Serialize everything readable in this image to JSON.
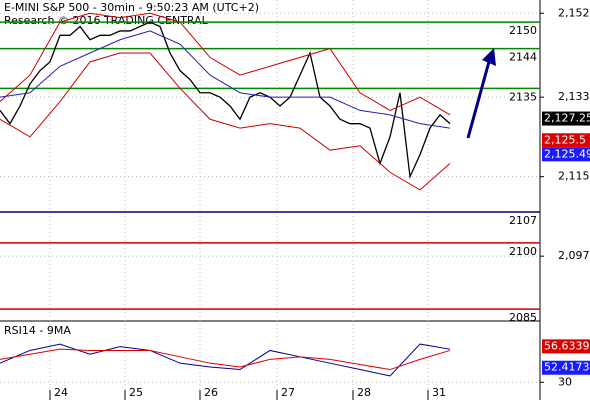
{
  "chart_data": [
    {
      "type": "line",
      "title": "E-MINI S&P 500 - 30min - 9:50:23 AM (UTC+2)",
      "subtitle": "Research © 2016 TRADING CENTRAL",
      "xlim": [
        0,
        54
      ],
      "ylim": [
        2083,
        2155
      ],
      "xticks": [
        {
          "value": 5,
          "label": "24"
        },
        {
          "value": 12.5,
          "label": "25"
        },
        {
          "value": 20,
          "label": "26"
        },
        {
          "value": 27.7,
          "label": "27"
        },
        {
          "value": 35.3,
          "label": "28"
        },
        {
          "value": 42.8,
          "label": "31"
        }
      ],
      "yticks": [
        {
          "value": 2152,
          "label": "2,152"
        },
        {
          "value": 2133,
          "label": "2,133"
        },
        {
          "value": 2115,
          "label": "2,115"
        },
        {
          "value": 2097,
          "label": "2,097"
        }
      ],
      "grid": true,
      "series": [
        {
          "color": "#000000",
          "x": [
            0,
            1,
            2,
            3,
            4,
            5,
            6,
            7,
            8,
            9,
            10,
            11,
            12,
            13,
            14,
            15,
            16,
            17,
            18,
            19,
            20,
            21,
            22,
            23,
            24,
            25,
            26,
            27,
            28,
            29,
            30,
            31,
            32,
            33,
            34,
            35,
            36,
            37,
            38,
            39,
            40,
            41,
            42,
            43,
            44,
            45
          ],
          "values": [
            2130,
            2127,
            2131,
            2136,
            2139,
            2141,
            2147,
            2147,
            2149,
            2146,
            2147,
            2147,
            2148,
            2148,
            2149,
            2150,
            2149,
            2143,
            2139,
            2137,
            2134,
            2134,
            2133,
            2131,
            2128,
            2133,
            2134,
            2133,
            2131,
            2133,
            2138,
            2143,
            2133,
            2131,
            2128,
            2127,
            2127,
            2126,
            2118,
            2124,
            2134,
            2115,
            2120,
            2126,
            2129,
            2127
          ]
        },
        {
          "color": "#cc0000",
          "x": [
            0,
            3,
            6,
            9,
            12,
            15,
            18,
            21,
            24,
            27,
            30,
            33,
            36,
            39,
            42,
            45
          ],
          "values": [
            2132,
            2138,
            2150,
            2152,
            2151,
            2152,
            2150,
            2142,
            2138,
            2140,
            2142,
            2144,
            2134,
            2130,
            2133,
            2129
          ]
        },
        {
          "color": "#cc0000",
          "x": [
            0,
            3,
            6,
            9,
            12,
            15,
            18,
            21,
            24,
            27,
            30,
            33,
            36,
            39,
            42,
            45
          ],
          "values": [
            2128,
            2124,
            2132,
            2141,
            2143,
            2143,
            2135,
            2128,
            2126,
            2127,
            2126,
            2121,
            2122,
            2116,
            2112,
            2118
          ]
        },
        {
          "color": "#2222aa",
          "x": [
            0,
            3,
            6,
            9,
            12,
            15,
            18,
            21,
            24,
            27,
            30,
            33,
            36,
            39,
            42,
            45
          ],
          "values": [
            2133,
            2134,
            2140,
            2143,
            2146,
            2148,
            2145,
            2138,
            2134,
            2133,
            2133,
            2133,
            2130,
            2129,
            2127,
            2126
          ]
        }
      ],
      "levels": [
        {
          "value": 2150,
          "color": "#008800"
        },
        {
          "value": 2144,
          "color": "#008800"
        },
        {
          "value": 2135,
          "color": "#008800"
        },
        {
          "value": 2107,
          "color": "#000088"
        },
        {
          "value": 2100,
          "color": "#cc0000"
        },
        {
          "value": 2085,
          "color": "#cc0000"
        }
      ],
      "price_markers": [
        {
          "value": 2127.25,
          "label": "2,127.25",
          "color": "#000000"
        },
        {
          "value": 2125.5,
          "label": "2,125.5",
          "color": "#dd0000"
        },
        {
          "value": 2125.49,
          "label": "2,125.49",
          "color": "#1a1aff"
        }
      ]
    },
    {
      "type": "line",
      "title": "RSI14 - 9MA",
      "xlim": [
        0,
        54
      ],
      "ylim": [
        20,
        75
      ],
      "yticks": [
        30
      ],
      "series": [
        {
          "color": "#000088",
          "x": [
            0,
            3,
            6,
            9,
            12,
            15,
            18,
            21,
            24,
            27,
            30,
            33,
            36,
            39,
            42,
            45
          ],
          "values": [
            45,
            55,
            60,
            52,
            58,
            55,
            45,
            42,
            40,
            55,
            50,
            45,
            40,
            35,
            60,
            56
          ]
        },
        {
          "color": "#dd0000",
          "x": [
            0,
            3,
            6,
            9,
            12,
            15,
            18,
            21,
            24,
            27,
            30,
            33,
            36,
            39,
            42,
            45
          ],
          "values": [
            48,
            52,
            56,
            55,
            55,
            55,
            50,
            45,
            42,
            48,
            50,
            48,
            44,
            40,
            48,
            55
          ]
        }
      ],
      "price_markers": [
        {
          "value": 56.6339,
          "label": "56.6339",
          "color": "#dd0000"
        },
        {
          "value": 52.4173,
          "label": "52.4173",
          "color": "#1a1aff"
        }
      ]
    }
  ]
}
